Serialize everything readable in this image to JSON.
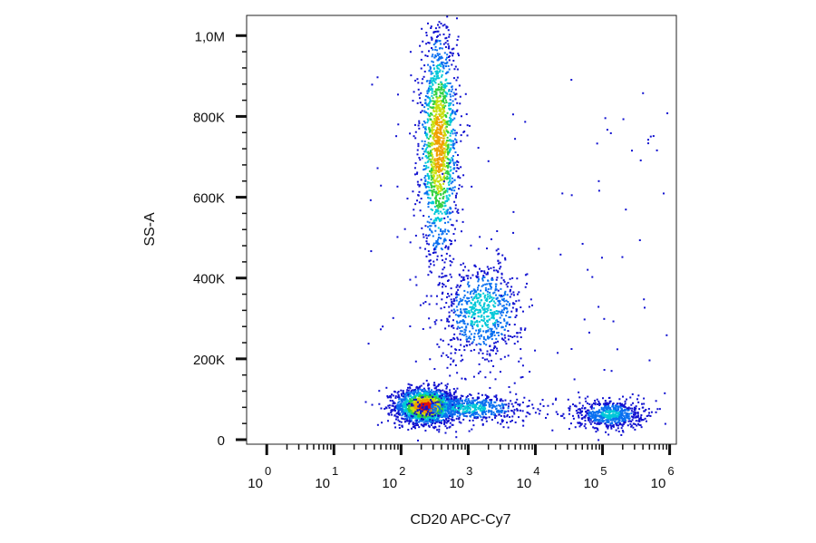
{
  "chart_data": {
    "type": "scatter",
    "title": "",
    "xlabel": "CD20 APC-Cy7",
    "ylabel": "SS-A",
    "x_scale": "log",
    "x_range_log10": [
      -0.3,
      6.1
    ],
    "ylim": [
      0,
      1050000
    ],
    "grid": false,
    "y_ticks": [
      {
        "value": 0,
        "label": "0"
      },
      {
        "value": 200000,
        "label": "200K"
      },
      {
        "value": 400000,
        "label": "400K"
      },
      {
        "value": 600000,
        "label": "600K"
      },
      {
        "value": 800000,
        "label": "800K"
      },
      {
        "value": 1000000,
        "label": "1,0M"
      }
    ],
    "x_ticks": [
      {
        "exponent": 0,
        "base": "10",
        "sup": "0"
      },
      {
        "exponent": 1,
        "base": "10",
        "sup": "1"
      },
      {
        "exponent": 2,
        "base": "10",
        "sup": "2"
      },
      {
        "exponent": 3,
        "base": "10",
        "sup": "3"
      },
      {
        "exponent": 4,
        "base": "10",
        "sup": "4"
      },
      {
        "exponent": 5,
        "base": "10",
        "sup": "5"
      },
      {
        "exponent": 6,
        "base": "10",
        "sup": "6"
      }
    ],
    "density_colors": [
      "#1010d0",
      "#0a70f0",
      "#00c8d8",
      "#30d040",
      "#c8e010",
      "#f0a000",
      "#e01010"
    ],
    "populations": [
      {
        "id": "lymphocytes-cd20neg",
        "center_log10_x": 2.35,
        "center_y": 85000,
        "sd_log10_x": 0.22,
        "sd_y": 22000,
        "relative_density": 1.0
      },
      {
        "id": "lymphocytes-tail",
        "center_log10_x": 3.0,
        "center_y": 80000,
        "sd_log10_x": 0.45,
        "sd_y": 18000,
        "relative_density": 0.35
      },
      {
        "id": "granulocytes",
        "center_log10_x": 2.55,
        "center_y": 730000,
        "sd_log10_x": 0.14,
        "sd_y": 140000,
        "relative_density": 0.85
      },
      {
        "id": "monocytes",
        "center_log10_x": 3.2,
        "center_y": 320000,
        "sd_log10_x": 0.3,
        "sd_y": 60000,
        "relative_density": 0.4
      },
      {
        "id": "b-cells-cd20pos",
        "center_log10_x": 5.1,
        "center_y": 65000,
        "sd_log10_x": 0.25,
        "sd_y": 18000,
        "relative_density": 0.35
      }
    ]
  }
}
